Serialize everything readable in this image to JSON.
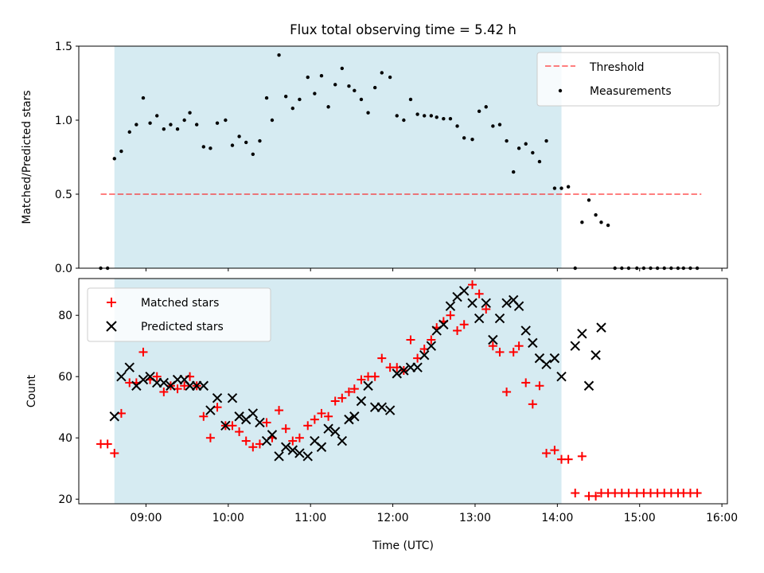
{
  "figure": {
    "title": "Flux total observing time = 5.42 h",
    "xlabel": "Time (UTC)",
    "xtick_labels": [
      "09:00",
      "10:00",
      "11:00",
      "12:00",
      "13:00",
      "14:00",
      "15:00",
      "16:00"
    ]
  },
  "colors": {
    "shade": "#add8e6",
    "threshold": "#ff0000",
    "measurements": "#000000",
    "matched": "#ff0000",
    "predicted": "#000000"
  },
  "chart_data": [
    {
      "type": "scatter",
      "ylabel": "Matched/Predicted stars",
      "xlim": [
        "08:11",
        "16:04"
      ],
      "ylim": [
        0,
        1.5
      ],
      "yticks": [
        "0.0",
        "0.5",
        "1.0",
        "1.5"
      ],
      "shaded_span": [
        "08:37",
        "14:03"
      ],
      "threshold": {
        "name": "Threshold",
        "value": 0.5,
        "x_range": [
          "08:27",
          "15:45"
        ]
      },
      "legend": {
        "location": "upper right",
        "entries": [
          "Threshold",
          "Measurements"
        ]
      },
      "series": [
        {
          "name": "Measurements",
          "marker": "dot",
          "points": [
            [
              "08:27",
              0.0
            ],
            [
              "08:32",
              0.0
            ],
            [
              "08:37",
              0.74
            ],
            [
              "08:42",
              0.79
            ],
            [
              "08:48",
              0.92
            ],
            [
              "08:53",
              0.97
            ],
            [
              "08:58",
              1.15
            ],
            [
              "09:03",
              0.98
            ],
            [
              "09:08",
              1.03
            ],
            [
              "09:13",
              0.94
            ],
            [
              "09:18",
              0.97
            ],
            [
              "09:23",
              0.94
            ],
            [
              "09:28",
              1.0
            ],
            [
              "09:32",
              1.05
            ],
            [
              "09:37",
              0.97
            ],
            [
              "09:42",
              0.82
            ],
            [
              "09:47",
              0.81
            ],
            [
              "09:52",
              0.98
            ],
            [
              "09:58",
              1.0
            ],
            [
              "10:03",
              0.83
            ],
            [
              "10:08",
              0.89
            ],
            [
              "10:13",
              0.85
            ],
            [
              "10:18",
              0.77
            ],
            [
              "10:23",
              0.86
            ],
            [
              "10:28",
              1.15
            ],
            [
              "10:32",
              1.0
            ],
            [
              "10:37",
              1.44
            ],
            [
              "10:42",
              1.16
            ],
            [
              "10:47",
              1.08
            ],
            [
              "10:52",
              1.14
            ],
            [
              "10:58",
              1.29
            ],
            [
              "11:03",
              1.18
            ],
            [
              "11:08",
              1.3
            ],
            [
              "11:13",
              1.09
            ],
            [
              "11:18",
              1.24
            ],
            [
              "11:23",
              1.35
            ],
            [
              "11:28",
              1.23
            ],
            [
              "11:32",
              1.2
            ],
            [
              "11:37",
              1.14
            ],
            [
              "11:42",
              1.05
            ],
            [
              "11:47",
              1.22
            ],
            [
              "11:52",
              1.32
            ],
            [
              "11:58",
              1.29
            ],
            [
              "12:03",
              1.03
            ],
            [
              "12:08",
              1.0
            ],
            [
              "12:13",
              1.14
            ],
            [
              "12:18",
              1.04
            ],
            [
              "12:23",
              1.03
            ],
            [
              "12:28",
              1.03
            ],
            [
              "12:32",
              1.02
            ],
            [
              "12:37",
              1.01
            ],
            [
              "12:42",
              1.01
            ],
            [
              "12:47",
              0.96
            ],
            [
              "12:52",
              0.88
            ],
            [
              "12:58",
              0.87
            ],
            [
              "13:03",
              1.06
            ],
            [
              "13:08",
              1.09
            ],
            [
              "13:13",
              0.96
            ],
            [
              "13:18",
              0.97
            ],
            [
              "13:23",
              0.86
            ],
            [
              "13:28",
              0.65
            ],
            [
              "13:32",
              0.81
            ],
            [
              "13:37",
              0.84
            ],
            [
              "13:42",
              0.78
            ],
            [
              "13:47",
              0.72
            ],
            [
              "13:52",
              0.86
            ],
            [
              "13:58",
              0.54
            ],
            [
              "14:03",
              0.54
            ],
            [
              "14:08",
              0.55
            ],
            [
              "14:13",
              0.0
            ],
            [
              "14:18",
              0.31
            ],
            [
              "14:23",
              0.46
            ],
            [
              "14:28",
              0.36
            ],
            [
              "14:32",
              0.31
            ],
            [
              "14:37",
              0.29
            ],
            [
              "14:42",
              0.0
            ],
            [
              "14:47",
              0.0
            ],
            [
              "14:52",
              0.0
            ],
            [
              "14:58",
              0.0
            ],
            [
              "15:03",
              0.0
            ],
            [
              "15:08",
              0.0
            ],
            [
              "15:13",
              0.0
            ],
            [
              "15:18",
              0.0
            ],
            [
              "15:23",
              0.0
            ],
            [
              "15:28",
              0.0
            ],
            [
              "15:32",
              0.0
            ],
            [
              "15:37",
              0.0
            ],
            [
              "15:42",
              0.0
            ]
          ]
        }
      ]
    },
    {
      "type": "scatter",
      "ylabel": "Count",
      "xlim": [
        "08:11",
        "16:04"
      ],
      "ylim": [
        18.5,
        92
      ],
      "yticks": [
        "20",
        "40",
        "60",
        "80"
      ],
      "shaded_span": [
        "08:37",
        "14:03"
      ],
      "legend": {
        "location": "upper left",
        "entries": [
          "Matched stars",
          "Predicted stars"
        ]
      },
      "series": [
        {
          "name": "Matched stars",
          "marker": "plus",
          "points": [
            [
              "08:27",
              38
            ],
            [
              "08:32",
              38
            ],
            [
              "08:37",
              35
            ],
            [
              "08:42",
              48
            ],
            [
              "08:48",
              58
            ],
            [
              "08:53",
              58
            ],
            [
              "08:58",
              68
            ],
            [
              "09:03",
              59
            ],
            [
              "09:08",
              60
            ],
            [
              "09:13",
              55
            ],
            [
              "09:18",
              57
            ],
            [
              "09:23",
              56
            ],
            [
              "09:28",
              57
            ],
            [
              "09:32",
              60
            ],
            [
              "09:37",
              57
            ],
            [
              "09:42",
              47
            ],
            [
              "09:47",
              40
            ],
            [
              "09:52",
              50
            ],
            [
              "09:58",
              44
            ],
            [
              "10:03",
              44
            ],
            [
              "10:08",
              42
            ],
            [
              "10:13",
              39
            ],
            [
              "10:18",
              37
            ],
            [
              "10:23",
              38
            ],
            [
              "10:28",
              45
            ],
            [
              "10:32",
              40
            ],
            [
              "10:37",
              49
            ],
            [
              "10:42",
              43
            ],
            [
              "10:47",
              39
            ],
            [
              "10:52",
              40
            ],
            [
              "10:58",
              44
            ],
            [
              "11:03",
              46
            ],
            [
              "11:08",
              48
            ],
            [
              "11:13",
              47
            ],
            [
              "11:18",
              52
            ],
            [
              "11:23",
              53
            ],
            [
              "11:28",
              55
            ],
            [
              "11:32",
              56
            ],
            [
              "11:37",
              59
            ],
            [
              "11:42",
              60
            ],
            [
              "11:47",
              60
            ],
            [
              "11:52",
              66
            ],
            [
              "11:58",
              63
            ],
            [
              "12:03",
              63
            ],
            [
              "12:08",
              62
            ],
            [
              "12:13",
              72
            ],
            [
              "12:18",
              66
            ],
            [
              "12:23",
              69
            ],
            [
              "12:28",
              72
            ],
            [
              "12:32",
              76
            ],
            [
              "12:37",
              78
            ],
            [
              "12:42",
              80
            ],
            [
              "12:47",
              75
            ],
            [
              "12:52",
              77
            ],
            [
              "12:58",
              90
            ],
            [
              "13:03",
              87
            ],
            [
              "13:08",
              82
            ],
            [
              "13:13",
              70
            ],
            [
              "13:18",
              68
            ],
            [
              "13:23",
              55
            ],
            [
              "13:28",
              68
            ],
            [
              "13:32",
              70
            ],
            [
              "13:37",
              58
            ],
            [
              "13:42",
              51
            ],
            [
              "13:47",
              57
            ],
            [
              "13:52",
              35
            ],
            [
              "13:58",
              36
            ],
            [
              "14:03",
              33
            ],
            [
              "14:08",
              33
            ],
            [
              "14:13",
              22
            ],
            [
              "14:18",
              34
            ],
            [
              "14:23",
              21
            ],
            [
              "14:28",
              21
            ],
            [
              "14:32",
              22
            ],
            [
              "14:37",
              22
            ],
            [
              "14:42",
              22
            ],
            [
              "14:47",
              22
            ],
            [
              "14:52",
              22
            ],
            [
              "14:58",
              22
            ],
            [
              "15:03",
              22
            ],
            [
              "15:08",
              22
            ],
            [
              "15:13",
              22
            ],
            [
              "15:18",
              22
            ],
            [
              "15:23",
              22
            ],
            [
              "15:28",
              22
            ],
            [
              "15:32",
              22
            ],
            [
              "15:37",
              22
            ],
            [
              "15:42",
              22
            ]
          ]
        },
        {
          "name": "Predicted stars",
          "marker": "x",
          "points": [
            [
              "08:37",
              47
            ],
            [
              "08:42",
              60
            ],
            [
              "08:48",
              63
            ],
            [
              "08:53",
              57
            ],
            [
              "08:58",
              59
            ],
            [
              "09:03",
              60
            ],
            [
              "09:08",
              58
            ],
            [
              "09:13",
              58
            ],
            [
              "09:18",
              57
            ],
            [
              "09:23",
              59
            ],
            [
              "09:28",
              59
            ],
            [
              "09:32",
              57
            ],
            [
              "09:37",
              57
            ],
            [
              "09:42",
              57
            ],
            [
              "09:47",
              49
            ],
            [
              "09:52",
              53
            ],
            [
              "09:58",
              44
            ],
            [
              "10:03",
              53
            ],
            [
              "10:08",
              47
            ],
            [
              "10:13",
              46
            ],
            [
              "10:18",
              48
            ],
            [
              "10:23",
              45
            ],
            [
              "10:28",
              39
            ],
            [
              "10:32",
              41
            ],
            [
              "10:37",
              34
            ],
            [
              "10:42",
              37
            ],
            [
              "10:47",
              36
            ],
            [
              "10:52",
              35
            ],
            [
              "10:58",
              34
            ],
            [
              "11:03",
              39
            ],
            [
              "11:08",
              37
            ],
            [
              "11:13",
              43
            ],
            [
              "11:18",
              42
            ],
            [
              "11:23",
              39
            ],
            [
              "11:28",
              46
            ],
            [
              "11:32",
              47
            ],
            [
              "11:37",
              52
            ],
            [
              "11:42",
              57
            ],
            [
              "11:47",
              50
            ],
            [
              "11:52",
              50
            ],
            [
              "11:58",
              49
            ],
            [
              "12:03",
              61
            ],
            [
              "12:08",
              62
            ],
            [
              "12:13",
              63
            ],
            [
              "12:18",
              63
            ],
            [
              "12:23",
              67
            ],
            [
              "12:28",
              70
            ],
            [
              "12:32",
              75
            ],
            [
              "12:37",
              77
            ],
            [
              "12:42",
              83
            ],
            [
              "12:47",
              86
            ],
            [
              "12:52",
              88
            ],
            [
              "12:58",
              84
            ],
            [
              "13:03",
              79
            ],
            [
              "13:08",
              84
            ],
            [
              "13:13",
              72
            ],
            [
              "13:18",
              79
            ],
            [
              "13:23",
              84
            ],
            [
              "13:28",
              85
            ],
            [
              "13:32",
              83
            ],
            [
              "13:37",
              75
            ],
            [
              "13:42",
              71
            ],
            [
              "13:47",
              66
            ],
            [
              "13:52",
              64
            ],
            [
              "13:58",
              66
            ],
            [
              "14:03",
              60
            ],
            [
              "14:13",
              70
            ],
            [
              "14:18",
              74
            ],
            [
              "14:23",
              57
            ],
            [
              "14:28",
              67
            ],
            [
              "14:32",
              76
            ]
          ]
        }
      ]
    }
  ]
}
